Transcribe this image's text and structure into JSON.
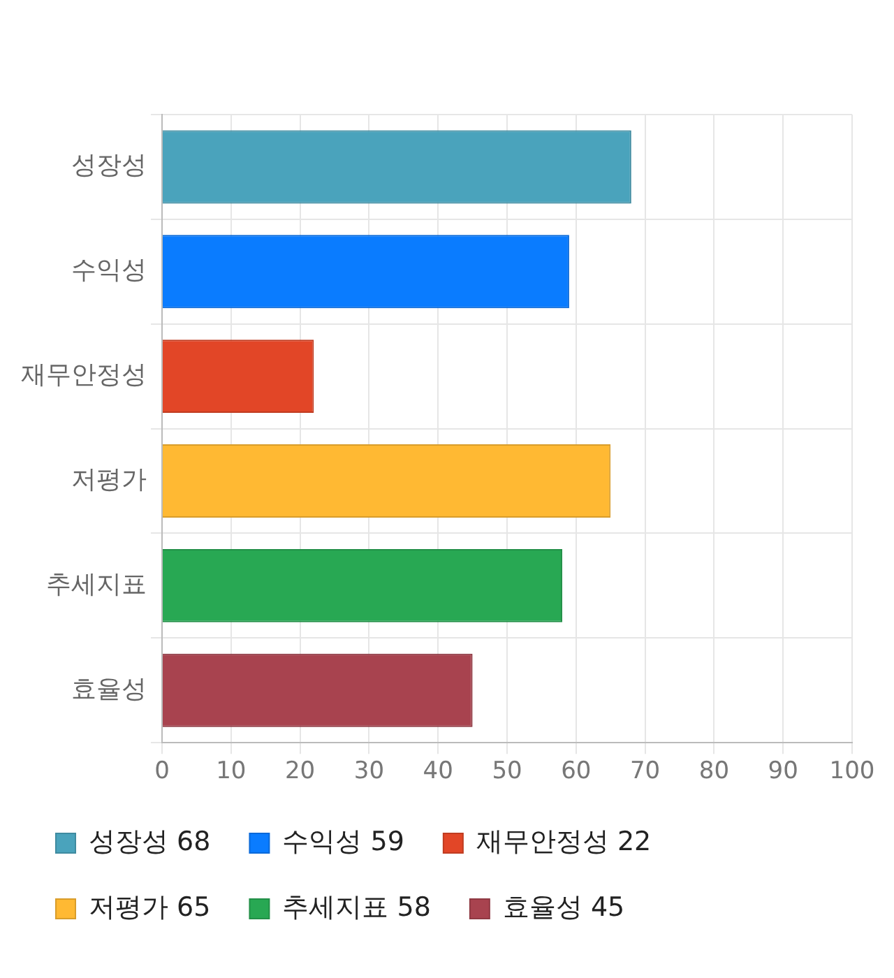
{
  "chart_data": {
    "type": "bar",
    "orientation": "horizontal",
    "categories": [
      "성장성",
      "수익성",
      "재무안정성",
      "저평가",
      "추세지표",
      "효율성"
    ],
    "series": [
      {
        "name": "성장성 68",
        "color": "#4aa3bc",
        "values": [
          68,
          null,
          null,
          null,
          null,
          null
        ]
      },
      {
        "name": "수익성 59",
        "color": "#0a7cff",
        "values": [
          null,
          59,
          null,
          null,
          null,
          null
        ]
      },
      {
        "name": "재무안정성 22",
        "color": "#e24627",
        "values": [
          null,
          null,
          22,
          null,
          null,
          null
        ]
      },
      {
        "name": "저평가 65",
        "color": "#ffb933",
        "values": [
          null,
          null,
          null,
          65,
          null,
          null
        ]
      },
      {
        "name": "추세지표 58",
        "color": "#28a853",
        "values": [
          null,
          null,
          null,
          null,
          58,
          null
        ]
      },
      {
        "name": "효율성 45",
        "color": "#a8434f",
        "values": [
          null,
          null,
          null,
          null,
          null,
          45
        ]
      }
    ],
    "xlim": [
      0,
      100
    ],
    "xticks": [
      0,
      10,
      20,
      30,
      40,
      50,
      60,
      70,
      80,
      90,
      100
    ],
    "grid": true,
    "legend": "bottom"
  }
}
